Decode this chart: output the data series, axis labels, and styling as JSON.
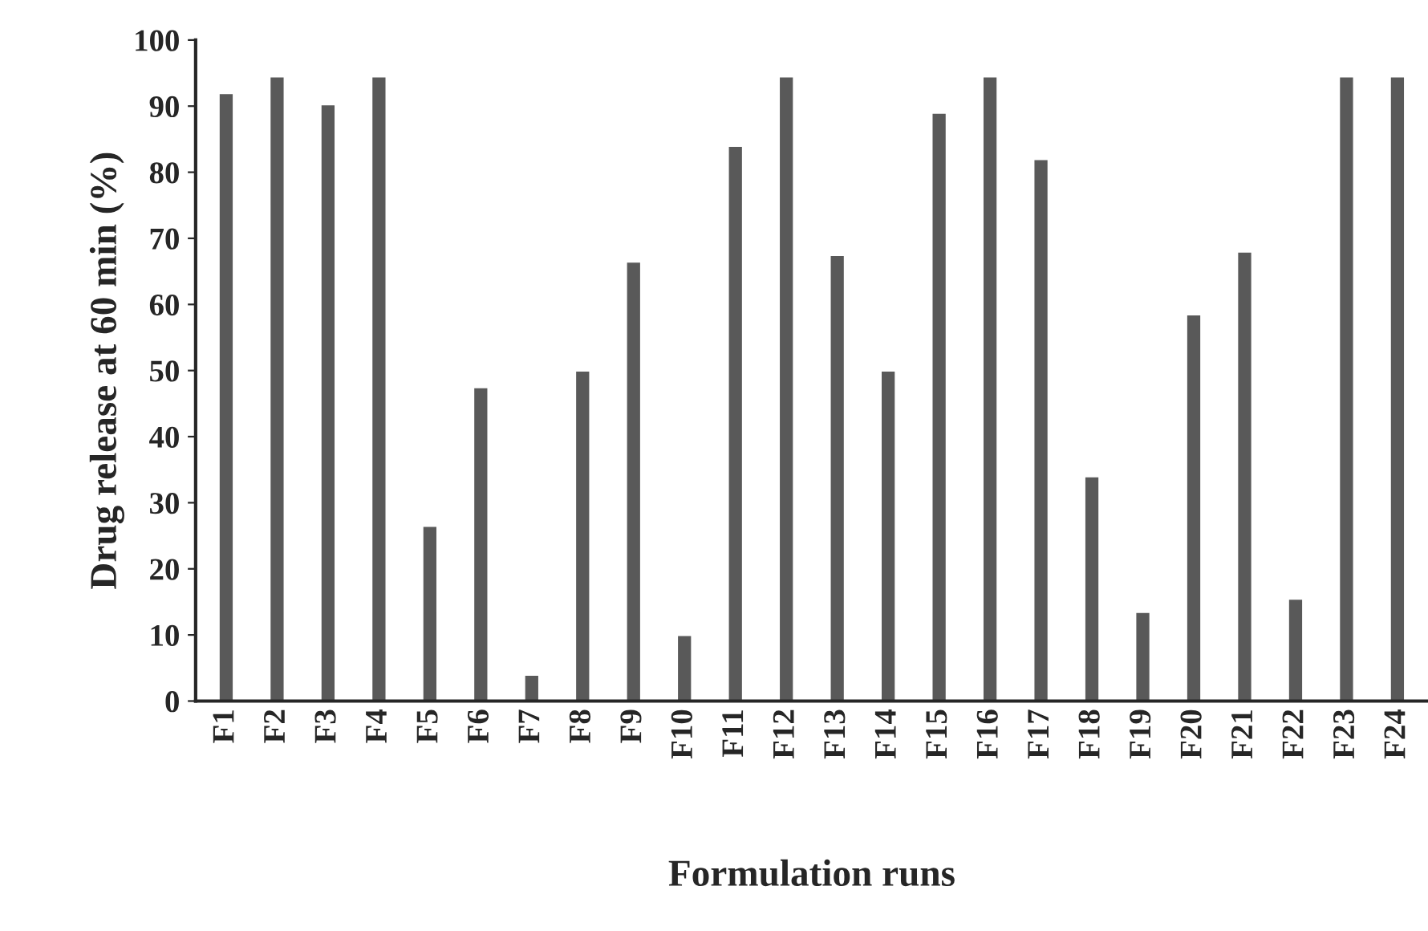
{
  "chart_data": {
    "type": "bar",
    "xlabel": "Formulation runs",
    "ylabel": "Drug release at 60 min (%)",
    "categories": [
      "F1",
      "F2",
      "F3",
      "F4",
      "F5",
      "F6",
      "F7",
      "F8",
      "F9",
      "F10",
      "F11",
      "F12",
      "F13",
      "F14",
      "F15",
      "F16",
      "F17",
      "F18",
      "F19",
      "F20",
      "F21",
      "F22",
      "F23",
      "F24"
    ],
    "values": [
      92,
      94.5,
      90.3,
      94.5,
      26.5,
      47.5,
      4,
      50,
      66.5,
      10,
      84,
      94.5,
      67.5,
      50,
      89,
      94.5,
      82,
      34,
      13.5,
      58.5,
      68,
      15.5,
      94.5,
      94.5
    ],
    "color": "#595959",
    "ylim": [
      0,
      100
    ],
    "yticks": [
      0,
      10,
      20,
      30,
      40,
      50,
      60,
      70,
      80,
      90,
      100
    ],
    "grid": false,
    "legend": false
  }
}
